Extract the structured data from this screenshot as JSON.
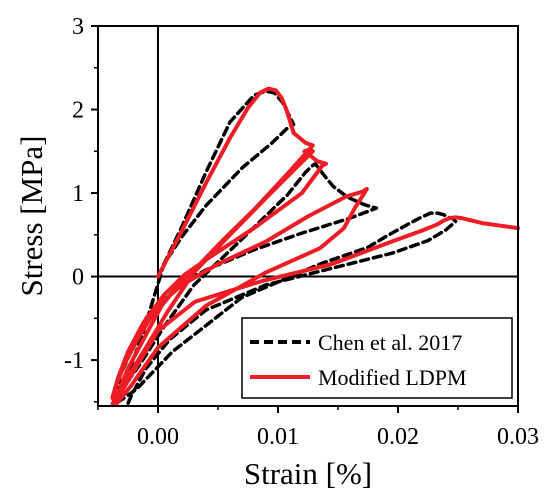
{
  "chart_data": {
    "type": "line",
    "xlabel": "Strain [%]",
    "ylabel": "Stress [MPa]",
    "xlim": [
      -0.005,
      0.03
    ],
    "ylim": [
      -1.55,
      3.0
    ],
    "xticks": [
      {
        "value": 0.0,
        "label": "0.00"
      },
      {
        "value": 0.01,
        "label": "0.01"
      },
      {
        "value": 0.02,
        "label": "0.02"
      },
      {
        "value": 0.03,
        "label": "0.03"
      }
    ],
    "yticks": [
      {
        "value": -1,
        "label": "-1"
      },
      {
        "value": 0,
        "label": "0"
      },
      {
        "value": 1,
        "label": "1"
      },
      {
        "value": 2,
        "label": "2"
      },
      {
        "value": 3,
        "label": "3"
      }
    ],
    "reference_lines": {
      "x": 0,
      "y": 0
    },
    "legend_position": "bottom-right",
    "series": [
      {
        "name": "Chen et al. 2017",
        "style": "dashed",
        "color": "#000000",
        "x": [
          0.0,
          0.002,
          0.004,
          0.006,
          0.008,
          0.009,
          0.0097,
          0.0104,
          0.0113,
          0.0108,
          0.0095,
          0.007,
          0.004,
          0.002,
          0.0005,
          -0.0013,
          -0.0028,
          -0.003,
          -0.0015,
          0.0005,
          0.003,
          0.007,
          0.0108,
          0.0123,
          0.0128,
          0.0131,
          0.0134,
          0.0138,
          0.0146,
          0.0158,
          0.0172,
          0.0182,
          0.0175,
          0.016,
          0.012,
          0.008,
          0.004,
          0.001,
          -0.001,
          -0.0032,
          -0.0033,
          -0.0018,
          0.0012,
          0.007,
          0.0135,
          0.0175,
          0.019,
          0.0205,
          0.0218,
          0.0227,
          0.0233,
          0.0238,
          0.0242,
          0.0246,
          0.0248,
          0.024,
          0.0225,
          0.0195,
          0.0145,
          0.009,
          0.004,
          0.001,
          -0.001,
          -0.0022,
          -0.0025
        ],
        "y": [
          0.0,
          0.6,
          1.25,
          1.85,
          2.17,
          2.22,
          2.2,
          2.08,
          1.82,
          1.78,
          1.6,
          1.3,
          0.85,
          0.48,
          0.15,
          -0.7,
          -1.28,
          -1.35,
          -1.05,
          -0.6,
          -0.1,
          0.45,
          0.98,
          1.25,
          1.32,
          1.35,
          1.3,
          1.22,
          1.08,
          0.95,
          0.86,
          0.82,
          0.78,
          0.7,
          0.52,
          0.32,
          0.08,
          -0.15,
          -0.5,
          -1.2,
          -1.5,
          -1.35,
          -0.9,
          -0.25,
          0.15,
          0.35,
          0.48,
          0.6,
          0.7,
          0.76,
          0.76,
          0.74,
          0.71,
          0.69,
          0.66,
          0.56,
          0.43,
          0.28,
          0.1,
          -0.1,
          -0.4,
          -0.75,
          -1.1,
          -1.42,
          -1.52
        ]
      },
      {
        "name": "Modified LDPM",
        "style": "solid",
        "color": "#ee1c25",
        "x": [
          0.0,
          0.002,
          0.004,
          0.006,
          0.0075,
          0.0085,
          0.0092,
          0.0098,
          0.0103,
          0.0107,
          0.0113,
          0.0123,
          0.0129,
          0.0106,
          0.008,
          0.0055,
          0.0035,
          0.002,
          0.0003,
          -0.0012,
          -0.0025,
          -0.0032,
          -0.0038,
          -0.0035,
          -0.0025,
          -0.001,
          0.0008,
          0.003,
          0.006,
          0.009,
          0.0115,
          0.0129,
          0.0126,
          0.0122,
          0.0133,
          0.014,
          0.0137,
          0.012,
          0.008,
          0.0045,
          0.0022,
          0.0005,
          -0.0012,
          -0.0025,
          -0.0033,
          -0.0038,
          -0.0035,
          -0.0022,
          0.0,
          0.004,
          0.009,
          0.0135,
          0.0155,
          0.0164,
          0.0172,
          0.0174,
          0.0171,
          0.0157,
          0.0125,
          0.009,
          0.005,
          0.002,
          0.0,
          -0.0015,
          -0.0028,
          -0.0036,
          -0.0037,
          -0.0025,
          0.0,
          0.0031,
          0.0085,
          0.0145,
          0.0195,
          0.022,
          0.0232,
          0.0238,
          0.0243,
          0.0248,
          0.0253,
          0.027,
          0.03
        ],
        "y": [
          0.0,
          0.55,
          1.12,
          1.66,
          2.02,
          2.2,
          2.25,
          2.23,
          2.14,
          2.0,
          1.72,
          1.6,
          1.57,
          1.2,
          0.8,
          0.45,
          0.15,
          -0.05,
          -0.35,
          -0.75,
          -1.1,
          -1.35,
          -1.53,
          -1.43,
          -1.2,
          -0.85,
          -0.42,
          0.05,
          0.5,
          0.94,
          1.3,
          1.5,
          1.52,
          1.5,
          1.38,
          1.35,
          1.33,
          1.0,
          0.58,
          0.25,
          0.02,
          -0.22,
          -0.55,
          -0.9,
          -1.2,
          -1.45,
          -1.53,
          -1.3,
          -0.85,
          -0.35,
          0.05,
          0.34,
          0.58,
          0.82,
          1.0,
          1.05,
          1.02,
          0.96,
          0.72,
          0.42,
          0.15,
          -0.1,
          -0.35,
          -0.7,
          -1.05,
          -1.35,
          -1.53,
          -1.25,
          -0.65,
          -0.3,
          -0.06,
          0.15,
          0.42,
          0.55,
          0.62,
          0.67,
          0.7,
          0.71,
          0.7,
          0.64,
          0.58
        ]
      }
    ]
  }
}
